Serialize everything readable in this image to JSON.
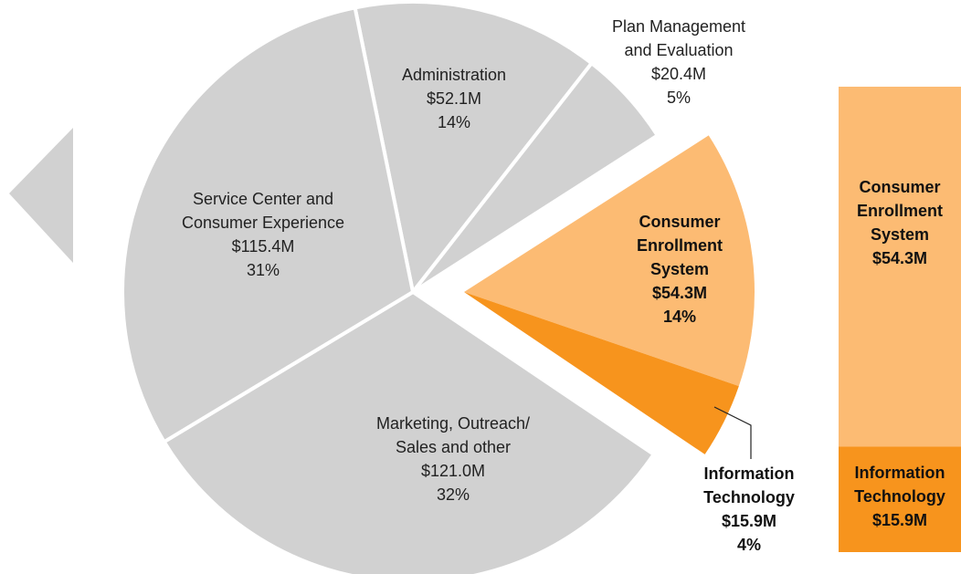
{
  "chart_data": [
    {
      "type": "pie",
      "categories": [
        [
          "Administration"
        ],
        [
          "Plan Management",
          "and Evaluation"
        ],
        [
          "Consumer",
          "Enrollment",
          "System"
        ],
        [
          "Information",
          "Technology"
        ],
        [
          "Marketing, Outreach/",
          "Sales and other"
        ],
        [
          "Service Center and",
          "Consumer Experience"
        ]
      ],
      "values": [
        52.1,
        20.4,
        54.3,
        15.9,
        121.0,
        115.4
      ],
      "value_labels": [
        "$52.1M",
        "$20.4M",
        "$54.3M",
        "$15.9M",
        "$121.0M",
        "$115.4M"
      ],
      "percents": [
        14,
        5,
        14,
        4,
        32,
        31
      ],
      "percent_labels": [
        "14%",
        "5%",
        "14%",
        "4%",
        "32%",
        "31%"
      ],
      "colors": [
        "#d1d1d1",
        "#d1d1d1",
        "#fcbb73",
        "#f7941d",
        "#d1d1d1",
        "#d1d1d1"
      ],
      "exploded": [
        false,
        false,
        true,
        true,
        false,
        false
      ]
    },
    {
      "type": "bar",
      "stacked": true,
      "series": [
        {
          "name": [
            "Consumer",
            "Enrollment",
            "System"
          ],
          "color": "#fcbb73",
          "values": [
            54.3
          ],
          "value_labels": [
            "$54.3M"
          ]
        },
        {
          "name": [
            "Information",
            "Technology"
          ],
          "color": "#f7941d",
          "values": [
            15.9
          ],
          "value_labels": [
            "$15.9M"
          ]
        }
      ]
    }
  ]
}
